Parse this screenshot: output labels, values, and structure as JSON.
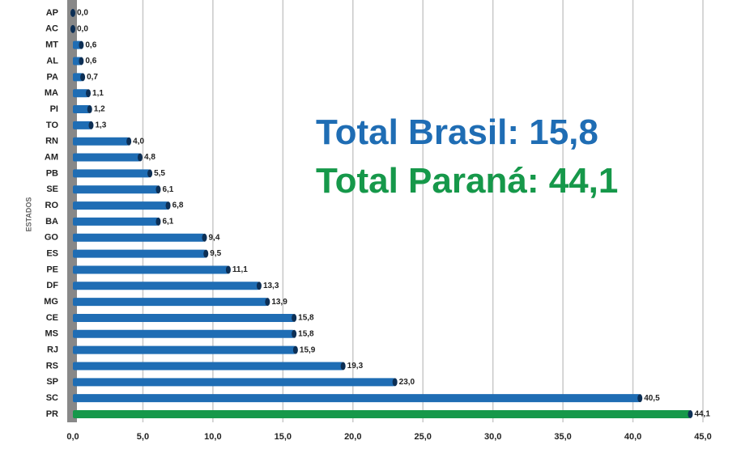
{
  "chart_data": {
    "type": "bar",
    "orientation": "horizontal",
    "y_label": "ESTADOS",
    "annotations": [
      "Total Brasil: 15,8",
      "Total Paraná: 44,1"
    ],
    "annotation_colors": [
      "#1f6db4",
      "#16984a"
    ],
    "categories": [
      "AP",
      "AC",
      "MT",
      "AL",
      "PA",
      "MA",
      "PI",
      "TO",
      "RN",
      "AM",
      "PB",
      "SE",
      "RO",
      "BA",
      "GO",
      "ES",
      "PE",
      "DF",
      "MG",
      "CE",
      "MS",
      "RJ",
      "RS",
      "SP",
      "SC",
      "PR"
    ],
    "values": [
      0.0,
      0.0,
      0.6,
      0.6,
      0.7,
      1.1,
      1.2,
      1.3,
      4.0,
      4.8,
      5.5,
      6.1,
      6.8,
      6.1,
      9.4,
      9.5,
      11.1,
      13.3,
      13.9,
      15.8,
      15.8,
      15.9,
      19.3,
      23.0,
      40.5,
      44.1
    ],
    "value_labels": [
      "0,0",
      "0,0",
      "0,6",
      "0,6",
      "0,7",
      "1,1",
      "1,2",
      "1,3",
      "4,0",
      "4,8",
      "5,5",
      "6,1",
      "6,8",
      "6,1",
      "9,4",
      "9,5",
      "11,1",
      "13,3",
      "13,9",
      "15,8",
      "15,8",
      "15,9",
      "19,3",
      "23,0",
      "40,5",
      "44,1"
    ],
    "colors": [
      "#1f6db4",
      "#1f6db4",
      "#1f6db4",
      "#1f6db4",
      "#1f6db4",
      "#1f6db4",
      "#1f6db4",
      "#1f6db4",
      "#1f6db4",
      "#1f6db4",
      "#1f6db4",
      "#1f6db4",
      "#1f6db4",
      "#1f6db4",
      "#1f6db4",
      "#1f6db4",
      "#1f6db4",
      "#1f6db4",
      "#1f6db4",
      "#1f6db4",
      "#1f6db4",
      "#1f6db4",
      "#1f6db4",
      "#1f6db4",
      "#1f6db4",
      "#16984a"
    ],
    "xlim": [
      0,
      45
    ],
    "xticks": [
      {
        "value": 0,
        "label": "0,0"
      },
      {
        "value": 5,
        "label": "5,0"
      },
      {
        "value": 10,
        "label": "10,0"
      },
      {
        "value": 15,
        "label": "15,0"
      },
      {
        "value": 20,
        "label": "20,0"
      },
      {
        "value": 25,
        "label": "25,0"
      },
      {
        "value": 30,
        "label": "30,0"
      },
      {
        "value": 35,
        "label": "35,0"
      },
      {
        "value": 40,
        "label": "40,0"
      },
      {
        "value": 45,
        "label": "45,0"
      }
    ],
    "grid": true
  }
}
